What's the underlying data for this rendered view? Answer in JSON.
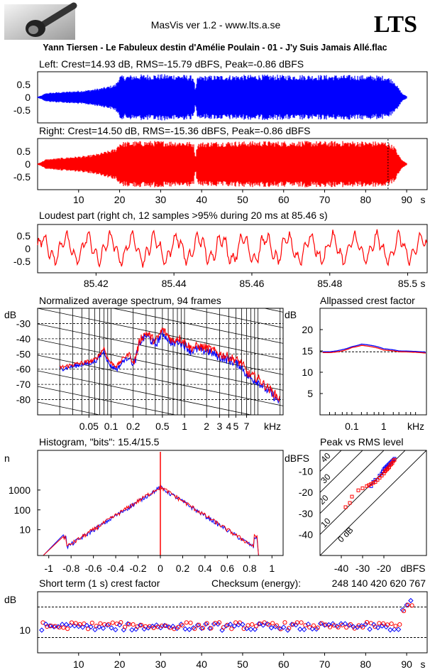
{
  "header": {
    "app_title": "MasVis ver 1.2 - www.lts.a.se",
    "brand": "LTS",
    "track_title": "Yann Tiersen - Le Fabuleux destin d'Amélie Poulain - 01 - J'y Suis Jamais Allé.flac"
  },
  "colors": {
    "left": "#0000ff",
    "right": "#ff0000",
    "grid": "#000000"
  },
  "chart_data": [
    {
      "id": "left_waveform",
      "type": "area",
      "title": "Left: Crest=14.93 dB, RMS=-15.79 dBFS, Peak=-0.86 dBFS",
      "xlim": [
        0,
        95
      ],
      "ylim": [
        -1,
        1
      ],
      "yticks": [
        "0.5",
        "0",
        "-0.5"
      ],
      "envelope": {
        "x": [
          0,
          1,
          2,
          5,
          8,
          12,
          15,
          17,
          19,
          20,
          22,
          25,
          30,
          35,
          38,
          38.5,
          39,
          40,
          45,
          50,
          55,
          60,
          65,
          70,
          75,
          80,
          85,
          87,
          88,
          89,
          90
        ],
        "amp": [
          0.02,
          0.08,
          0.18,
          0.22,
          0.25,
          0.3,
          0.38,
          0.45,
          0.55,
          0.9,
          0.92,
          0.95,
          0.96,
          0.95,
          0.9,
          0.3,
          0.85,
          0.9,
          0.92,
          0.93,
          0.94,
          0.93,
          0.94,
          0.93,
          0.93,
          0.92,
          0.9,
          0.7,
          0.4,
          0.15,
          0.05
        ]
      }
    },
    {
      "id": "right_waveform",
      "type": "area",
      "title": "Right: Crest=14.50 dB, RMS=-15.36 dBFS, Peak=-0.86 dBFS",
      "xlim": [
        0,
        95
      ],
      "ylim": [
        -1,
        1
      ],
      "yticks": [
        "0.5",
        "0",
        "-0.5"
      ],
      "xticks": [
        "10",
        "20",
        "30",
        "40",
        "50",
        "60",
        "70",
        "80",
        "90"
      ],
      "xunit": "s",
      "loudest_marker": 85.46,
      "envelope": {
        "x": [
          0,
          1,
          2,
          5,
          8,
          12,
          15,
          17,
          19,
          20,
          22,
          25,
          30,
          35,
          38,
          38.5,
          39,
          40,
          45,
          50,
          55,
          60,
          65,
          70,
          75,
          80,
          85,
          87,
          88,
          89,
          90
        ],
        "amp": [
          0.02,
          0.1,
          0.2,
          0.25,
          0.3,
          0.35,
          0.45,
          0.55,
          0.65,
          0.92,
          0.94,
          0.96,
          0.97,
          0.96,
          0.92,
          0.3,
          0.9,
          0.92,
          0.95,
          0.95,
          0.96,
          0.95,
          0.96,
          0.95,
          0.96,
          0.95,
          0.94,
          0.75,
          0.4,
          0.15,
          0.05
        ]
      }
    },
    {
      "id": "loudest_part",
      "type": "line",
      "title": "Loudest part (right ch, 12 samples >95% during 20 ms at 85.46 s)",
      "xlim": [
        85.405,
        85.505
      ],
      "ylim": [
        -1,
        1
      ],
      "yticks": [
        "0.5",
        "0",
        "-0.5"
      ],
      "xticks": [
        "85.42",
        "85.44",
        "85.46",
        "85.48",
        "85.5"
      ],
      "xunit": "s"
    },
    {
      "id": "spectrum",
      "type": "line",
      "title": "Normalized average spectrum, 94 frames",
      "ylabel": "dB",
      "xunit": "kHz",
      "ylim": [
        -90,
        -20
      ],
      "yticks": [
        "-30",
        "-40",
        "-50",
        "-60",
        "-70",
        "-80"
      ],
      "xticks": [
        "0.05",
        "0.1",
        "0.2",
        "0.5",
        "1",
        "2",
        "3",
        "4",
        "5",
        "7"
      ],
      "series": [
        {
          "color": "blue",
          "x": [
            0.02,
            0.025,
            0.03,
            0.04,
            0.05,
            0.06,
            0.07,
            0.08,
            0.09,
            0.1,
            0.12,
            0.15,
            0.18,
            0.2,
            0.25,
            0.3,
            0.35,
            0.4,
            0.5,
            0.6,
            0.7,
            0.8,
            1,
            1.2,
            1.5,
            2,
            2.5,
            3,
            4,
            5,
            6,
            7,
            8,
            10,
            12,
            15,
            20
          ],
          "y": [
            -60,
            -59,
            -58,
            -57,
            -56,
            -55,
            -52,
            -48,
            -55,
            -58,
            -60,
            -54,
            -52,
            -58,
            -42,
            -38,
            -41,
            -44,
            -36,
            -40,
            -44,
            -41,
            -44,
            -48,
            -47,
            -48,
            -50,
            -52,
            -54,
            -56,
            -58,
            -64,
            -66,
            -68,
            -72,
            -76,
            -82
          ]
        },
        {
          "color": "red",
          "x": [
            0.02,
            0.025,
            0.03,
            0.04,
            0.05,
            0.06,
            0.07,
            0.08,
            0.09,
            0.1,
            0.12,
            0.15,
            0.18,
            0.2,
            0.25,
            0.3,
            0.35,
            0.4,
            0.5,
            0.6,
            0.7,
            0.8,
            1,
            1.2,
            1.5,
            2,
            2.5,
            3,
            4,
            5,
            6,
            7,
            8,
            10,
            12,
            15,
            20
          ],
          "y": [
            -59,
            -58,
            -57,
            -56,
            -55,
            -54,
            -50,
            -46,
            -53,
            -56,
            -58,
            -52,
            -50,
            -57,
            -40,
            -36,
            -39,
            -42,
            -34,
            -38,
            -42,
            -39,
            -42,
            -46,
            -45,
            -46,
            -48,
            -50,
            -52,
            -54,
            -56,
            -62,
            -64,
            -66,
            -70,
            -74,
            -80
          ]
        }
      ]
    },
    {
      "id": "allpassed_crest",
      "type": "line",
      "title": "Allpassed crest factor",
      "ylabel": "dB",
      "xunit": "kHz",
      "ylim": [
        0,
        25
      ],
      "yticks": [
        "20",
        "15",
        "10",
        "5"
      ],
      "xticks": [
        "0.1",
        "1"
      ],
      "reference": 14.8,
      "series": [
        {
          "color": "blue",
          "x": [
            0.02,
            0.05,
            0.1,
            0.2,
            0.4,
            1,
            3,
            20
          ],
          "y": [
            14.8,
            15.3,
            16.0,
            16.6,
            16.3,
            15.5,
            15.0,
            14.7
          ]
        },
        {
          "color": "red",
          "x": [
            0.02,
            0.05,
            0.1,
            0.2,
            0.4,
            1,
            3,
            20
          ],
          "y": [
            14.6,
            15.0,
            15.8,
            16.3,
            16.0,
            15.2,
            14.8,
            14.5
          ]
        }
      ]
    },
    {
      "id": "histogram",
      "type": "line",
      "title": "Histogram, \"bits\": 15.4/15.5",
      "ylabel": "n",
      "yscale": "log",
      "yticks": [
        "1000",
        "100",
        "10"
      ],
      "xlim": [
        -1.1,
        1.1
      ],
      "xticks": [
        "-1",
        "-0.8",
        "-0.6",
        "-0.4",
        "-0.2",
        "0",
        "0.2",
        "0.4",
        "0.6",
        "0.8",
        "1"
      ]
    },
    {
      "id": "peak_vs_rms",
      "type": "scatter",
      "title": "Peak vs RMS level",
      "ylabel": "dBFS",
      "xunit": "dBFS",
      "xlim": [
        -50,
        0
      ],
      "ylim": [
        -50,
        0
      ],
      "yticks": [
        "-10",
        "-20",
        "-30",
        "-40"
      ],
      "xticks": [
        "-40",
        "-30",
        "-20"
      ],
      "diagonal_labels": [
        "40",
        "30",
        "20",
        "10",
        "0 dB"
      ],
      "blue": {
        "x": [
          -22,
          -21,
          -20.5,
          -20,
          -19.5,
          -19,
          -18.5,
          -18,
          -17.5,
          -17,
          -16.5,
          -16,
          -15.5,
          -15,
          -24,
          -25,
          -26
        ],
        "y": [
          -12,
          -11,
          -10,
          -9,
          -8.5,
          -8,
          -7.5,
          -7,
          -6.5,
          -6,
          -5.5,
          -5,
          -4.5,
          -4,
          -14,
          -15,
          -17
        ]
      },
      "red": {
        "x": [
          -38,
          -36,
          -35,
          -32,
          -30,
          -28,
          -27,
          -26,
          -25,
          -24,
          -23,
          -22,
          -21,
          -20,
          -19.5,
          -19,
          -18.5,
          -18,
          -17.5,
          -17,
          -16.5,
          -16,
          -15.5,
          -15
        ],
        "y": [
          -27,
          -25,
          -22,
          -19,
          -18,
          -17,
          -16.5,
          -16,
          -15.5,
          -15,
          -14,
          -13,
          -12,
          -11,
          -10,
          -9.5,
          -9,
          -8.5,
          -8,
          -7,
          -6.5,
          -6,
          -5,
          -4.5
        ]
      }
    },
    {
      "id": "short_term_crest",
      "type": "scatter",
      "title": "Short term (1 s) crest factor",
      "checksum_label": "Checksum (energy):",
      "checksum_value": "248 140 420 620 767",
      "ylabel": "dB",
      "ylim": [
        5,
        25
      ],
      "yticks": [
        "10"
      ],
      "xlim": [
        0,
        95
      ],
      "xticks": [
        "10",
        "20",
        "30",
        "40",
        "50",
        "60",
        "70",
        "80",
        "90"
      ],
      "xunit": "s",
      "reference_lines": [
        10,
        20
      ]
    }
  ]
}
